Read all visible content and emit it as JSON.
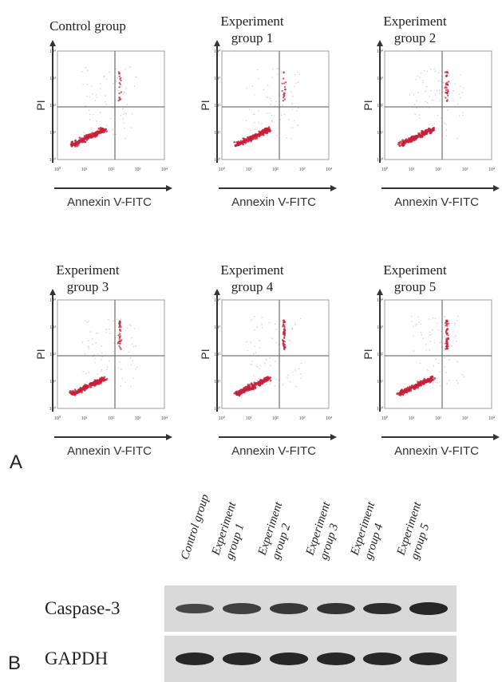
{
  "figure": {
    "panel_a_letter": "A",
    "panel_b_letter": "B"
  },
  "flow_panels": [
    {
      "title_lines": [
        "Control group"
      ],
      "xlabel": "Annexin V-FITC",
      "ylabel": "PI",
      "late_apoptosis": "low"
    },
    {
      "title_lines": [
        "Experiment",
        "group 1"
      ],
      "xlabel": "Annexin V-FITC",
      "ylabel": "PI",
      "late_apoptosis": "low"
    },
    {
      "title_lines": [
        "Experiment",
        "group 2"
      ],
      "xlabel": "Annexin V-FITC",
      "ylabel": "PI",
      "late_apoptosis": "medium"
    },
    {
      "title_lines": [
        "Experiment",
        "group 3"
      ],
      "xlabel": "Annexin V-FITC",
      "ylabel": "PI",
      "late_apoptosis": "medium"
    },
    {
      "title_lines": [
        "Experiment",
        "group 4"
      ],
      "xlabel": "Annexin V-FITC",
      "ylabel": "PI",
      "late_apoptosis": "high"
    },
    {
      "title_lines": [
        "Experiment",
        "group 5"
      ],
      "xlabel": "Annexin V-FITC",
      "ylabel": "PI",
      "late_apoptosis": "high"
    }
  ],
  "axis_ticks": [
    "10⁰",
    "10¹",
    "10²",
    "10³",
    "10⁴"
  ],
  "western_blot": {
    "lanes": [
      {
        "lines": [
          "Control group"
        ]
      },
      {
        "lines": [
          "Experiment",
          "group 1"
        ]
      },
      {
        "lines": [
          "Experiment",
          "group 2"
        ]
      },
      {
        "lines": [
          "Experiment",
          "group 3"
        ]
      },
      {
        "lines": [
          "Experiment",
          "group 4"
        ]
      },
      {
        "lines": [
          "Experiment",
          "group 5"
        ]
      }
    ],
    "rows": [
      {
        "label": "Caspase-3",
        "band_intensity": [
          0.62,
          0.68,
          0.74,
          0.8,
          0.86,
          0.93
        ]
      },
      {
        "label": "GAPDH",
        "band_intensity": [
          0.9,
          0.9,
          0.9,
          0.9,
          0.9,
          0.9
        ]
      }
    ]
  },
  "colors": {
    "dots": "#c8203a",
    "axis": "#333333",
    "gate": "#555555",
    "band": "#1e1e1e",
    "blot_bg": "#d9d9d9"
  }
}
